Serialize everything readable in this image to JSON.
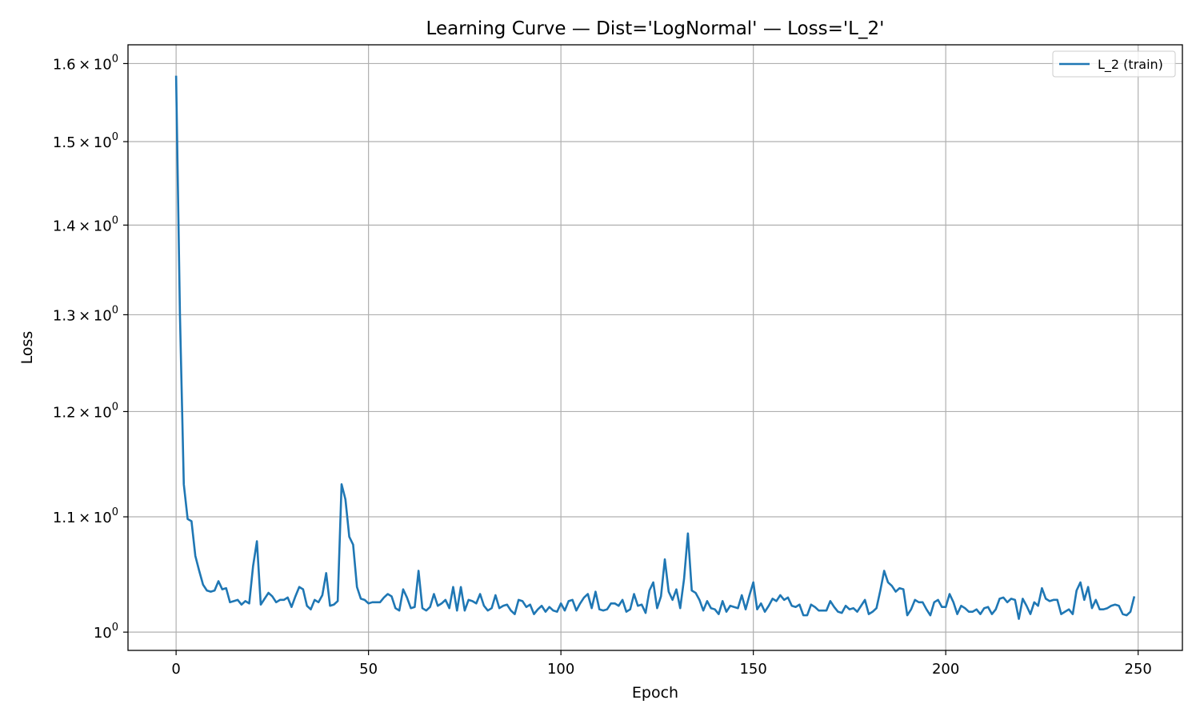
{
  "chart_data": {
    "type": "line",
    "title": "Learning Curve — Dist='LogNormal' — Loss='L_2'",
    "xlabel": "Epoch",
    "ylabel": "Loss",
    "y_scale": "log",
    "xlim": [
      -12.5,
      261.5
    ],
    "ylim": [
      0.985,
      1.625
    ],
    "x_ticks": [
      0,
      50,
      100,
      150,
      200,
      250
    ],
    "x_tick_labels": [
      "0",
      "50",
      "100",
      "150",
      "200",
      "250"
    ],
    "y_ticks": [
      1.0,
      1.1,
      1.2,
      1.3,
      1.4,
      1.5,
      1.6
    ],
    "y_tick_labels": [
      {
        "mantissa": "",
        "base": "10",
        "exp": "0"
      },
      {
        "mantissa": "1.1",
        "base": "10",
        "exp": "0"
      },
      {
        "mantissa": "1.2",
        "base": "10",
        "exp": "0"
      },
      {
        "mantissa": "1.3",
        "base": "10",
        "exp": "0"
      },
      {
        "mantissa": "1.4",
        "base": "10",
        "exp": "0"
      },
      {
        "mantissa": "1.5",
        "base": "10",
        "exp": "0"
      },
      {
        "mantissa": "1.6",
        "base": "10",
        "exp": "0"
      }
    ],
    "grid": true,
    "legend_position": "top-right",
    "colors": {
      "series": "#1f77b4",
      "grid": "#b0b0b0",
      "axes": "#000000"
    },
    "series": [
      {
        "name": "L_2 (train)",
        "x_start": 0,
        "x_step": 1,
        "values": [
          1.584,
          1.3,
          1.13,
          1.098,
          1.096,
          1.065,
          1.052,
          1.04,
          1.035,
          1.034,
          1.035,
          1.043,
          1.036,
          1.037,
          1.025,
          1.026,
          1.027,
          1.023,
          1.026,
          1.024,
          1.056,
          1.078,
          1.023,
          1.028,
          1.033,
          1.03,
          1.025,
          1.027,
          1.027,
          1.029,
          1.021,
          1.03,
          1.038,
          1.036,
          1.022,
          1.019,
          1.027,
          1.025,
          1.031,
          1.05,
          1.022,
          1.023,
          1.026,
          1.13,
          1.116,
          1.082,
          1.075,
          1.038,
          1.028,
          1.027,
          1.024,
          1.025,
          1.025,
          1.025,
          1.029,
          1.032,
          1.03,
          1.02,
          1.018,
          1.036,
          1.029,
          1.02,
          1.021,
          1.052,
          1.02,
          1.018,
          1.021,
          1.032,
          1.022,
          1.024,
          1.027,
          1.02,
          1.038,
          1.018,
          1.038,
          1.018,
          1.027,
          1.026,
          1.024,
          1.032,
          1.022,
          1.018,
          1.02,
          1.031,
          1.02,
          1.022,
          1.023,
          1.018,
          1.015,
          1.027,
          1.026,
          1.021,
          1.023,
          1.015,
          1.019,
          1.022,
          1.017,
          1.021,
          1.018,
          1.017,
          1.024,
          1.018,
          1.026,
          1.027,
          1.018,
          1.024,
          1.029,
          1.032,
          1.02,
          1.034,
          1.019,
          1.018,
          1.019,
          1.024,
          1.024,
          1.022,
          1.027,
          1.017,
          1.019,
          1.032,
          1.022,
          1.023,
          1.016,
          1.035,
          1.042,
          1.02,
          1.03,
          1.062,
          1.034,
          1.027,
          1.036,
          1.02,
          1.045,
          1.085,
          1.035,
          1.033,
          1.027,
          1.018,
          1.026,
          1.02,
          1.019,
          1.015,
          1.026,
          1.017,
          1.022,
          1.021,
          1.02,
          1.031,
          1.019,
          1.031,
          1.042,
          1.019,
          1.024,
          1.017,
          1.022,
          1.028,
          1.026,
          1.031,
          1.027,
          1.029,
          1.022,
          1.021,
          1.023,
          1.014,
          1.014,
          1.023,
          1.021,
          1.018,
          1.018,
          1.018,
          1.026,
          1.021,
          1.017,
          1.016,
          1.022,
          1.019,
          1.02,
          1.017,
          1.022,
          1.027,
          1.015,
          1.017,
          1.02,
          1.035,
          1.052,
          1.042,
          1.039,
          1.034,
          1.037,
          1.036,
          1.014,
          1.019,
          1.027,
          1.025,
          1.025,
          1.019,
          1.014,
          1.025,
          1.027,
          1.021,
          1.021,
          1.032,
          1.025,
          1.015,
          1.022,
          1.02,
          1.017,
          1.017,
          1.019,
          1.015,
          1.02,
          1.021,
          1.015,
          1.019,
          1.028,
          1.029,
          1.025,
          1.028,
          1.027,
          1.011,
          1.028,
          1.022,
          1.015,
          1.025,
          1.022,
          1.037,
          1.028,
          1.026,
          1.027,
          1.027,
          1.015,
          1.017,
          1.019,
          1.015,
          1.035,
          1.042,
          1.027,
          1.038,
          1.02,
          1.027,
          1.019,
          1.019,
          1.02,
          1.022,
          1.023,
          1.022,
          1.015,
          1.014,
          1.017,
          1.03
        ]
      }
    ]
  }
}
